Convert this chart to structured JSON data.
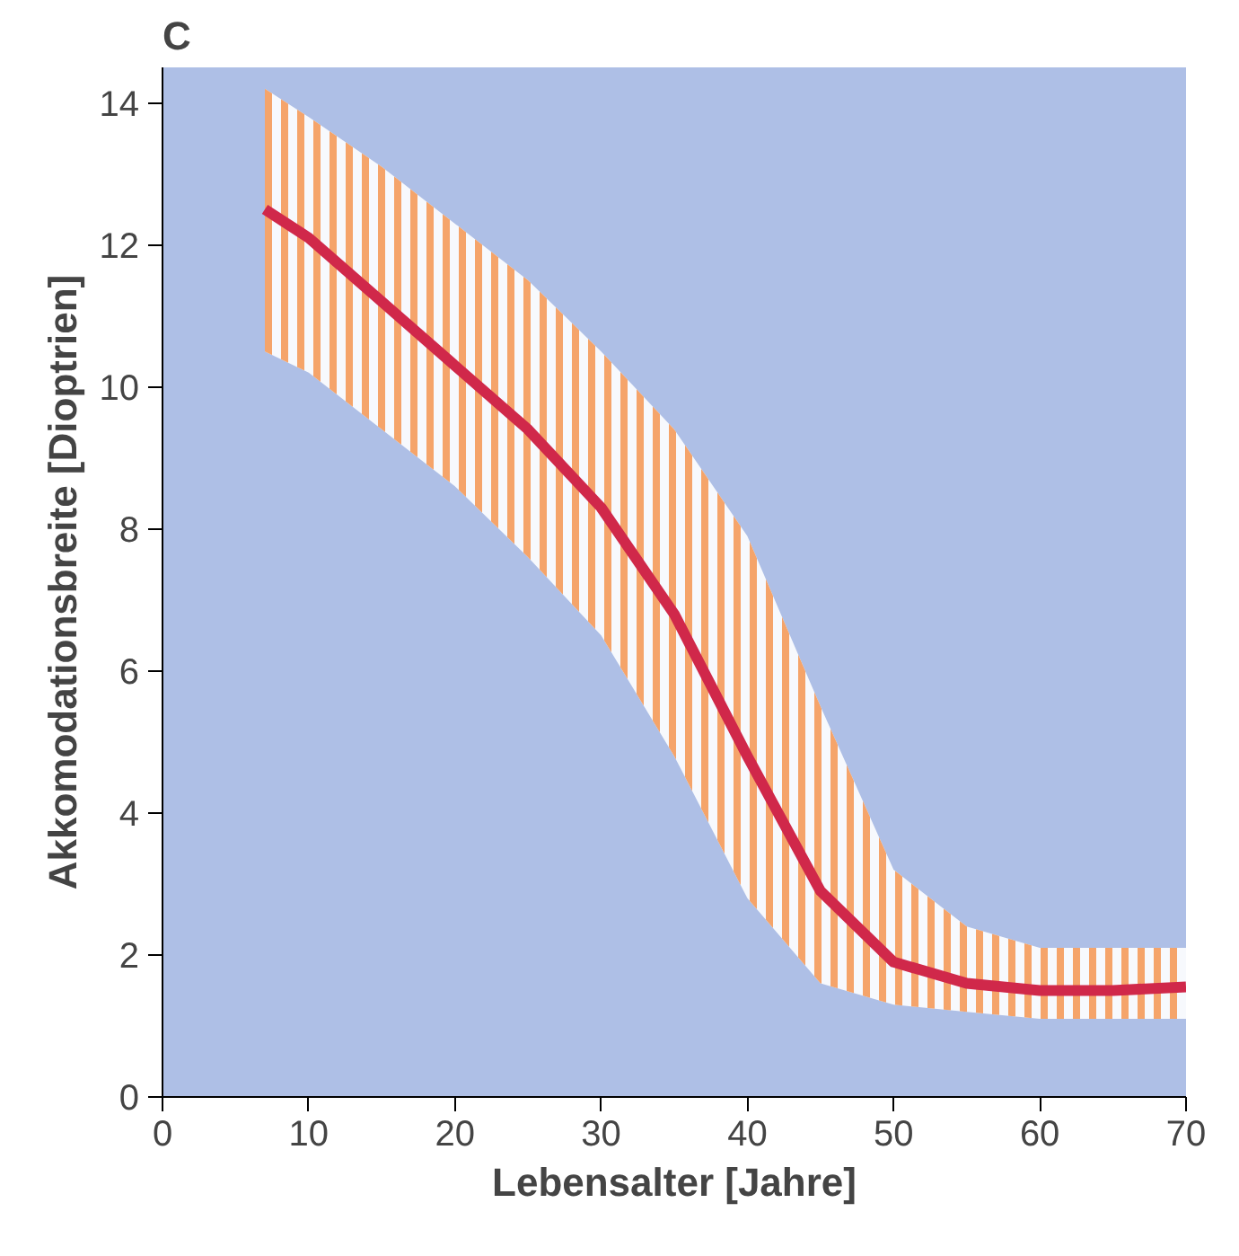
{
  "chart_data": {
    "type": "line",
    "title": "C",
    "xlabel": "Lebensalter [Jahre]",
    "ylabel": "Akkomodationsbreite [Dioptrien]",
    "x": [
      7,
      10,
      15,
      20,
      25,
      30,
      35,
      40,
      45,
      50,
      55,
      60,
      65,
      70
    ],
    "series": [
      {
        "color": "#d0284a",
        "values": [
          12.5,
          12.1,
          11.2,
          10.3,
          9.4,
          8.3,
          6.8,
          4.8,
          2.9,
          1.9,
          1.6,
          1.5,
          1.5,
          1.55
        ],
        "lower": [
          10.5,
          10.2,
          9.4,
          8.6,
          7.6,
          6.5,
          4.8,
          2.8,
          1.6,
          1.3,
          1.2,
          1.1,
          1.1,
          1.1
        ],
        "upper": [
          14.2,
          13.8,
          13.1,
          12.3,
          11.5,
          10.5,
          9.4,
          7.9,
          5.5,
          3.2,
          2.4,
          2.1,
          2.1,
          2.1
        ]
      }
    ],
    "xlim": [
      0,
      70
    ],
    "ylim": [
      0,
      14.5
    ],
    "xticks": [
      0,
      10,
      20,
      30,
      40,
      50,
      60,
      70
    ],
    "yticks": [
      0,
      2,
      4,
      6,
      8,
      10,
      12,
      14
    ],
    "grid": false,
    "marker": "none",
    "line_style": "solid"
  }
}
